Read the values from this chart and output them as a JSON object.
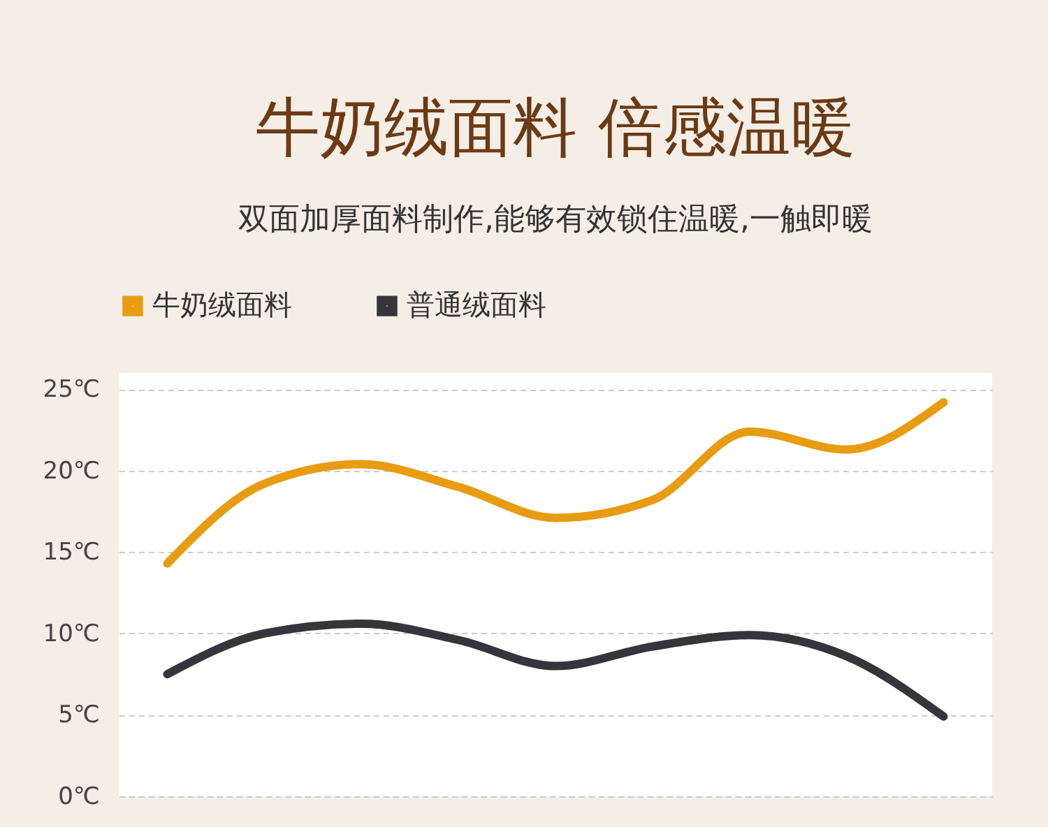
{
  "chart_data": {
    "type": "line",
    "title": "牛奶绒面料 倍感温暖",
    "subtitle": "双面加厚面料制作,能够有效锁住温暖,一触即暖",
    "categories": [
      null,
      null,
      null,
      null,
      null,
      null,
      null,
      null,
      null
    ],
    "series": [
      {
        "name": "牛奶绒面料",
        "color": "#e89c12",
        "values": [
          14.3,
          19.2,
          20.4,
          19,
          17.1,
          18.2,
          22.4,
          21.3,
          24.2
        ]
      },
      {
        "name": "普通绒面料",
        "color": "#35353b",
        "values": [
          7.5,
          10.0,
          10.6,
          9.6,
          8.0,
          9.2,
          9.9,
          8.6,
          4.9
        ]
      }
    ],
    "ylim": [
      0,
      26
    ],
    "yticks": [
      {
        "value": 0,
        "label": "0℃"
      },
      {
        "value": 5,
        "label": "5℃"
      },
      {
        "value": 10,
        "label": "10℃"
      },
      {
        "value": 15,
        "label": "15℃"
      },
      {
        "value": 20,
        "label": "20℃"
      },
      {
        "value": 25,
        "label": "25℃"
      }
    ],
    "grid": "y",
    "legend": "top",
    "marker": "none",
    "line_style": "solid",
    "tick_labels": "y"
  }
}
